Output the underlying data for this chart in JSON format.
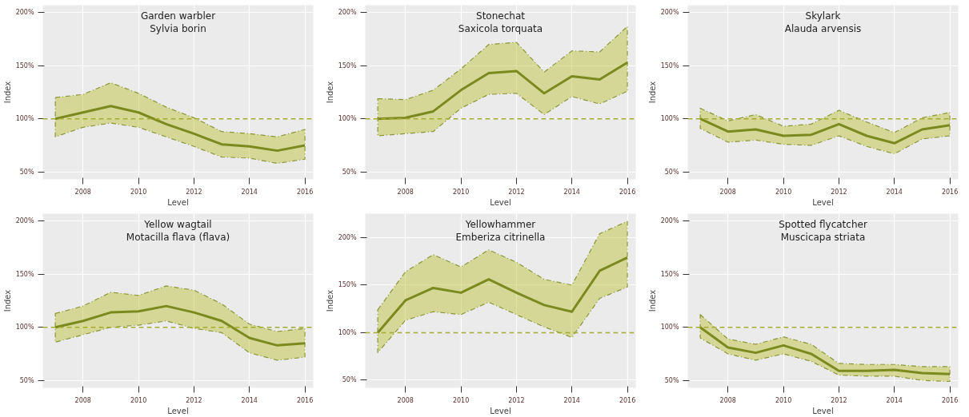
{
  "chart_data": [
    {
      "type": "line",
      "title": "Garden warbler",
      "subtitle": "Sylvia borin",
      "xlabel": "Level",
      "ylabel": "Index",
      "grid": true,
      "xlim": [
        2006.55,
        2016.3
      ],
      "xticks": [
        2008,
        2010,
        2012,
        2014,
        2016
      ],
      "ylim": [
        43,
        207
      ],
      "yticks": [
        {
          "value": 50,
          "label": "50%"
        },
        {
          "value": 100,
          "label": "100%"
        },
        {
          "value": 150,
          "label": "150%"
        },
        {
          "value": 200,
          "label": "200%"
        }
      ],
      "x": [
        2007,
        2008,
        2009,
        2010,
        2011,
        2012,
        2013,
        2014,
        2015,
        2016
      ],
      "series": [
        {
          "color": "#7a8a1e",
          "values": [
            100,
            106,
            112,
            106,
            95,
            86,
            76,
            74,
            70,
            75
          ],
          "upper": [
            120,
            123,
            134,
            124,
            111,
            101,
            88,
            86,
            83,
            90
          ],
          "lower": [
            83,
            92,
            96,
            92,
            83,
            74,
            64,
            63,
            58,
            62
          ]
        }
      ],
      "ref_lines": [
        {
          "axis": "y",
          "value": 100,
          "color": "#a4ad32",
          "line_style": "dashed"
        }
      ]
    },
    {
      "type": "line",
      "title": "Stonechat",
      "subtitle": "Saxicola torquata",
      "xlabel": "Level",
      "ylabel": "Index",
      "grid": true,
      "xlim": [
        2006.55,
        2016.3
      ],
      "xticks": [
        2008,
        2010,
        2012,
        2014,
        2016
      ],
      "ylim": [
        43,
        207
      ],
      "yticks": [
        {
          "value": 50,
          "label": "50%"
        },
        {
          "value": 100,
          "label": "100%"
        },
        {
          "value": 150,
          "label": "150%"
        },
        {
          "value": 200,
          "label": "200%"
        }
      ],
      "x": [
        2007,
        2008,
        2009,
        2010,
        2011,
        2012,
        2013,
        2014,
        2015,
        2016
      ],
      "series": [
        {
          "color": "#7a8a1e",
          "values": [
            100,
            101,
            107,
            127,
            143,
            145,
            124,
            140,
            137,
            153
          ],
          "upper": [
            119,
            118,
            127,
            147,
            170,
            172,
            144,
            164,
            163,
            187
          ],
          "lower": [
            84,
            86,
            88,
            110,
            123,
            124,
            104,
            121,
            114,
            126
          ]
        }
      ],
      "ref_lines": [
        {
          "axis": "y",
          "value": 100,
          "color": "#a4ad32",
          "line_style": "dashed"
        }
      ]
    },
    {
      "type": "line",
      "title": "Skylark",
      "subtitle": "Alauda arvensis",
      "xlabel": "Level",
      "ylabel": "Index",
      "grid": true,
      "xlim": [
        2006.55,
        2016.3
      ],
      "xticks": [
        2008,
        2010,
        2012,
        2014,
        2016
      ],
      "ylim": [
        43,
        207
      ],
      "yticks": [
        {
          "value": 50,
          "label": "50%"
        },
        {
          "value": 100,
          "label": "100%"
        },
        {
          "value": 150,
          "label": "150%"
        },
        {
          "value": 200,
          "label": "200%"
        }
      ],
      "x": [
        2007,
        2008,
        2009,
        2010,
        2011,
        2012,
        2013,
        2014,
        2015,
        2016
      ],
      "series": [
        {
          "color": "#7a8a1e",
          "values": [
            100,
            88,
            90,
            84,
            85,
            95,
            84,
            77,
            90,
            94
          ],
          "upper": [
            110,
            98,
            104,
            93,
            95,
            108,
            97,
            87,
            101,
            106
          ],
          "lower": [
            91,
            78,
            80,
            76,
            75,
            84,
            74,
            67,
            81,
            84
          ]
        }
      ],
      "ref_lines": [
        {
          "axis": "y",
          "value": 100,
          "color": "#a4ad32",
          "line_style": "dashed"
        }
      ]
    },
    {
      "type": "line",
      "title": "Yellow wagtail",
      "subtitle": "Motacilla flava (flava)",
      "xlabel": "Level",
      "ylabel": "Index",
      "grid": true,
      "xlim": [
        2006.55,
        2016.3
      ],
      "xticks": [
        2008,
        2010,
        2012,
        2014,
        2016
      ],
      "ylim": [
        43,
        207
      ],
      "yticks": [
        {
          "value": 50,
          "label": "50%"
        },
        {
          "value": 100,
          "label": "100%"
        },
        {
          "value": 150,
          "label": "150%"
        },
        {
          "value": 200,
          "label": "200%"
        }
      ],
      "x": [
        2007,
        2008,
        2009,
        2010,
        2011,
        2012,
        2013,
        2014,
        2015,
        2016
      ],
      "series": [
        {
          "color": "#7a8a1e",
          "values": [
            100,
            106,
            114,
            115,
            120,
            114,
            106,
            90,
            83,
            85
          ],
          "upper": [
            113,
            120,
            133,
            130,
            139,
            135,
            122,
            103,
            96,
            99
          ],
          "lower": [
            86,
            93,
            100,
            102,
            106,
            99,
            95,
            76,
            69,
            72
          ]
        }
      ],
      "ref_lines": [
        {
          "axis": "y",
          "value": 100,
          "color": "#a4ad32",
          "line_style": "dashed"
        }
      ]
    },
    {
      "type": "line",
      "title": "Yellowhammer",
      "subtitle": "Emberiza citrinella",
      "xlabel": "Level",
      "ylabel": "Index",
      "grid": true,
      "xlim": [
        2006.55,
        2016.3
      ],
      "xticks": [
        2008,
        2010,
        2012,
        2014,
        2016
      ],
      "ylim": [
        42,
        225
      ],
      "yticks": [
        {
          "value": 50,
          "label": "50%"
        },
        {
          "value": 100,
          "label": "100%"
        },
        {
          "value": 150,
          "label": "150%"
        },
        {
          "value": 200,
          "label": "200%"
        }
      ],
      "x": [
        2007,
        2008,
        2009,
        2010,
        2011,
        2012,
        2013,
        2014,
        2015,
        2016
      ],
      "series": [
        {
          "color": "#7a8a1e",
          "values": [
            100,
            134,
            147,
            142,
            156,
            142,
            129,
            122,
            165,
            179
          ],
          "upper": [
            124,
            164,
            182,
            169,
            187,
            174,
            156,
            150,
            204,
            217
          ],
          "lower": [
            79,
            113,
            122,
            119,
            132,
            119,
            106,
            95,
            136,
            148
          ]
        }
      ],
      "ref_lines": [
        {
          "axis": "y",
          "value": 100,
          "color": "#a4ad32",
          "line_style": "dashed"
        }
      ]
    },
    {
      "type": "line",
      "title": "Spotted flycatcher",
      "subtitle": "Muscicapa striata",
      "xlabel": "Level",
      "ylabel": "Index",
      "grid": true,
      "xlim": [
        2006.55,
        2016.3
      ],
      "xticks": [
        2008,
        2010,
        2012,
        2014,
        2016
      ],
      "ylim": [
        43,
        207
      ],
      "yticks": [
        {
          "value": 50,
          "label": "50%"
        },
        {
          "value": 100,
          "label": "100%"
        },
        {
          "value": 150,
          "label": "150%"
        },
        {
          "value": 200,
          "label": "200%"
        }
      ],
      "x": [
        2007,
        2008,
        2009,
        2010,
        2011,
        2012,
        2013,
        2014,
        2015,
        2016
      ],
      "series": [
        {
          "color": "#7a8a1e",
          "values": [
            100,
            81,
            76,
            83,
            75,
            59,
            59,
            60,
            57,
            56
          ],
          "upper": [
            112,
            89,
            84,
            91,
            84,
            66,
            65,
            65,
            63,
            63
          ],
          "lower": [
            90,
            75,
            69,
            75,
            68,
            55,
            54,
            54,
            50,
            49
          ]
        }
      ],
      "ref_lines": [
        {
          "axis": "y",
          "value": 100,
          "color": "#a4ad32",
          "line_style": "dashed"
        }
      ]
    }
  ]
}
